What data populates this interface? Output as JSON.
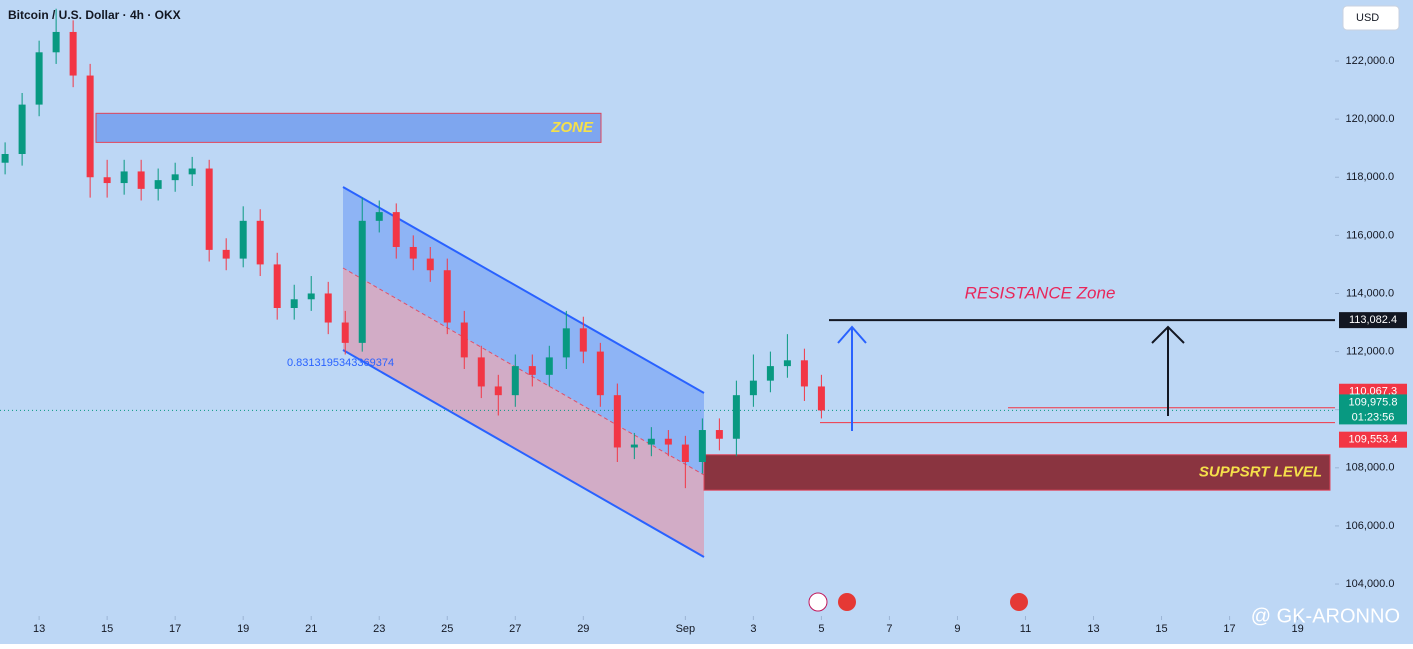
{
  "chart_data": {
    "type": "candlestick",
    "title": "Bitcoin / U.S. Dollar · 4h · OKX",
    "currency": "USD",
    "up_color": "#089981",
    "down_color": "#f23645",
    "background": "#bdd7f5",
    "x": [
      -1,
      -0.5,
      0,
      0.5,
      1,
      1.5,
      2,
      2.5,
      3,
      3.5,
      4,
      4.5,
      5,
      5.5,
      6,
      6.5,
      7,
      7.5,
      8,
      8.5,
      9,
      9.5,
      10,
      10.5,
      11,
      11.5,
      12,
      12.5,
      13,
      13.5,
      14,
      14.5,
      15,
      15.5,
      16,
      16.5,
      17,
      17.5,
      18,
      18.5,
      19,
      19.5,
      20,
      20.5,
      21,
      21.5,
      22,
      22.5,
      23
    ],
    "open": [
      118500,
      118800,
      120500,
      122300,
      123000,
      121500,
      118000,
      117800,
      118200,
      117600,
      117900,
      118100,
      118300,
      115500,
      115200,
      116500,
      115000,
      113500,
      113800,
      114000,
      113000,
      112300,
      116500,
      116800,
      115600,
      115200,
      114800,
      113000,
      111800,
      110800,
      110500,
      111500,
      111200,
      111800,
      112800,
      112000,
      110500,
      108700,
      108800,
      109000,
      108800,
      108200,
      109300,
      109000,
      110500,
      111000,
      111500,
      111700,
      110800
    ],
    "high": [
      119200,
      120900,
      122700,
      123800,
      123400,
      121900,
      118600,
      118600,
      118600,
      118300,
      118500,
      118700,
      118600,
      115900,
      117000,
      116900,
      115400,
      114300,
      114600,
      114400,
      113400,
      117300,
      117200,
      117100,
      116000,
      115600,
      115200,
      113400,
      112200,
      111200,
      111900,
      111900,
      112200,
      113400,
      113200,
      112300,
      110900,
      109200,
      109400,
      109300,
      109100,
      109700,
      109700,
      111000,
      111900,
      112000,
      112600,
      112100,
      111200
    ],
    "low": [
      118100,
      118400,
      120100,
      121900,
      121100,
      117300,
      117300,
      117400,
      117200,
      117200,
      117500,
      117700,
      115100,
      114800,
      114900,
      114600,
      113100,
      113100,
      113400,
      112600,
      111900,
      112000,
      116100,
      115200,
      114800,
      114400,
      112600,
      111400,
      110400,
      109800,
      110100,
      110800,
      110800,
      111400,
      111600,
      110100,
      108200,
      108300,
      108400,
      108400,
      107300,
      107800,
      108600,
      108400,
      110100,
      110600,
      111100,
      110300,
      109700
    ],
    "close": [
      118800,
      120500,
      122300,
      123000,
      121500,
      118000,
      117800,
      118200,
      117600,
      117900,
      118100,
      118300,
      115500,
      115200,
      116500,
      115000,
      113500,
      113800,
      114000,
      113000,
      112300,
      116500,
      116800,
      115600,
      115200,
      114800,
      113000,
      111800,
      110800,
      110500,
      111500,
      111200,
      111800,
      112800,
      112000,
      110500,
      108700,
      108800,
      109000,
      108800,
      108200,
      109300,
      109000,
      110500,
      111000,
      111500,
      111700,
      110800,
      109976
    ],
    "ylim": [
      102900,
      124100
    ],
    "yticks": [
      {
        "value": 104000,
        "label": "104,000.0"
      },
      {
        "value": 106000,
        "label": "106,000.0"
      },
      {
        "value": 108000,
        "label": "108,000.0"
      },
      {
        "value": 110000,
        "label": "110,000.0"
      },
      {
        "value": 112000,
        "label": "112,000.0"
      },
      {
        "value": 114000,
        "label": "114,000.0"
      },
      {
        "value": 116000,
        "label": "116,000.0"
      },
      {
        "value": 118000,
        "label": "118,000.0"
      },
      {
        "value": 120000,
        "label": "120,000.0"
      },
      {
        "value": 122000,
        "label": "122,000.0"
      }
    ],
    "xlim": [
      -1.15,
      38.1
    ],
    "xticks": [
      {
        "value": 0,
        "label": "13"
      },
      {
        "value": 2,
        "label": "15"
      },
      {
        "value": 4,
        "label": "17"
      },
      {
        "value": 6,
        "label": "19"
      },
      {
        "value": 8,
        "label": "21"
      },
      {
        "value": 10,
        "label": "23"
      },
      {
        "value": 12,
        "label": "25"
      },
      {
        "value": 14,
        "label": "27"
      },
      {
        "value": 16,
        "label": "29"
      },
      {
        "value": 19,
        "label": "Sep"
      },
      {
        "value": 21,
        "label": "3"
      },
      {
        "value": 23,
        "label": "5"
      },
      {
        "value": 25,
        "label": "7"
      },
      {
        "value": 27,
        "label": "9"
      },
      {
        "value": 29,
        "label": "11"
      },
      {
        "value": 31,
        "label": "13"
      },
      {
        "value": 33,
        "label": "15"
      },
      {
        "value": 35,
        "label": "17"
      },
      {
        "value": 37,
        "label": "19"
      }
    ],
    "zones": [
      {
        "label": "ZONE",
        "top": 120200,
        "bottom": 119200,
        "fill": "#7ea6ef",
        "text_color": "#f5e04a"
      },
      {
        "label": "SUPPSRT LEVEL",
        "top": 108450,
        "bottom": 107230,
        "fill": "#8a3440",
        "text_color": "#f5e04a"
      }
    ],
    "annotations": [
      "RESISTANCE Zone",
      "0.8313195343369374",
      "@ GK-ARONNO"
    ],
    "price_labels": [
      {
        "value": 113082.4,
        "label": "113,082.4",
        "color": "#131722"
      },
      {
        "value": 110067.3,
        "label": "110,067.3",
        "color": "#f23645"
      },
      {
        "value": 109975.8,
        "label": "109,975.8",
        "color": "#089981"
      },
      {
        "value": 109553.4,
        "label": "109,553.4",
        "color": "#f23645"
      }
    ],
    "countdown": "01:23:56"
  }
}
